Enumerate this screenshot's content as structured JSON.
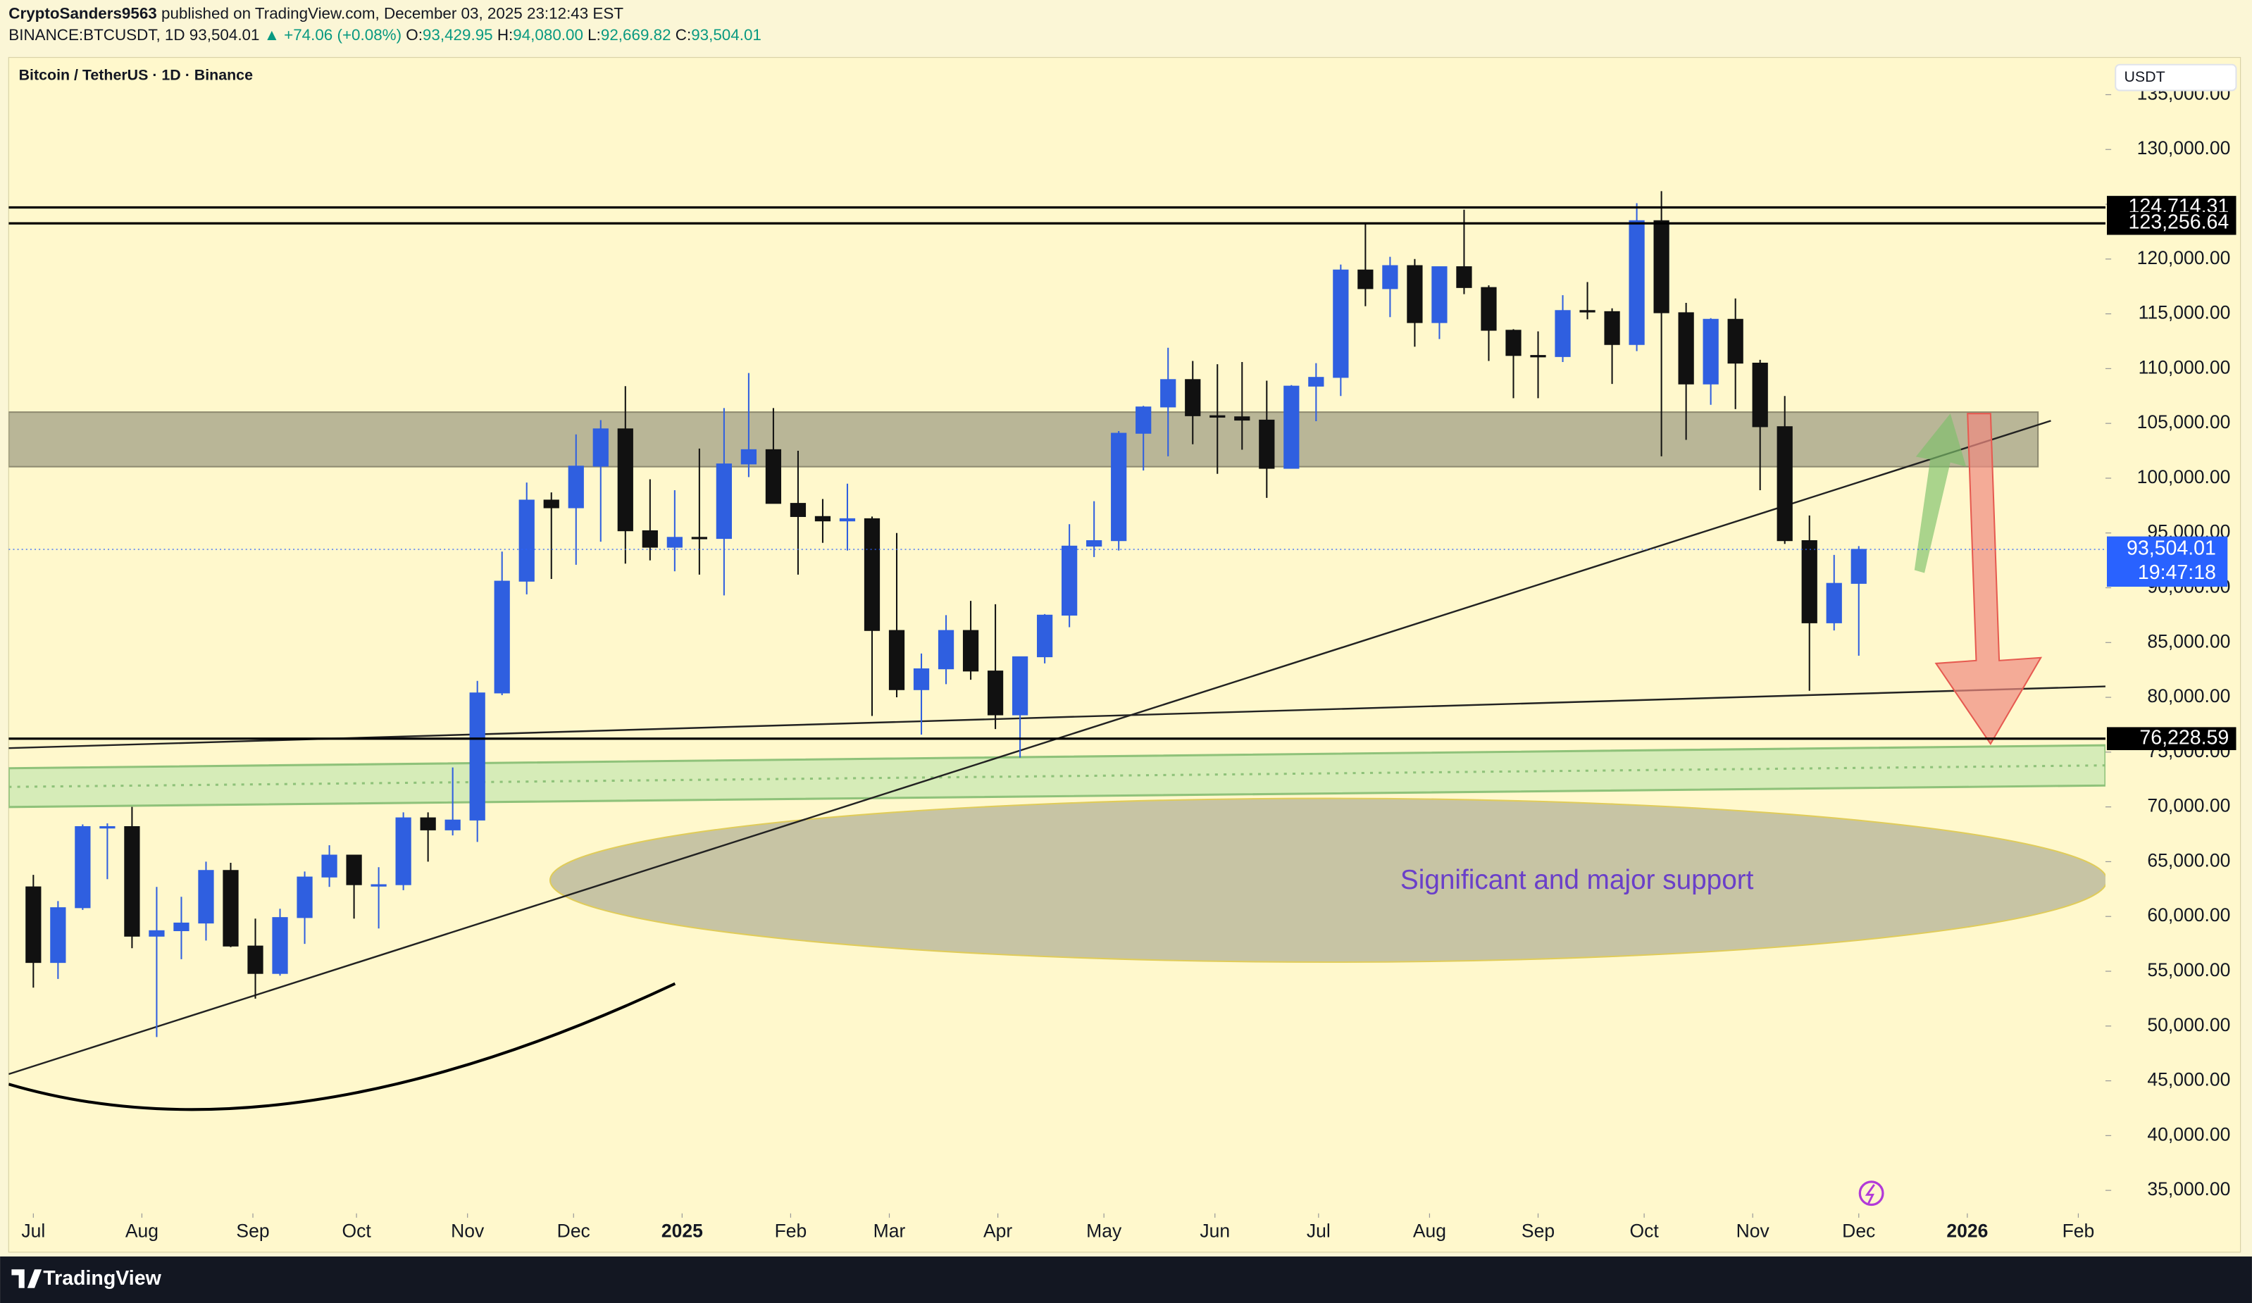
{
  "header": {
    "author": "CryptoSanders9563",
    "published": "published on TradingView.com, December 03, 2025 23:12:43 EST",
    "symbol": "BINANCE:BTCUSDT, 1D",
    "price": "93,504.01",
    "change": "▲ +74.06 (+0.08%)",
    "ohlc": [
      {
        "key": "O:",
        "value": "93,429.95"
      },
      {
        "key": "H:",
        "value": "94,080.00"
      },
      {
        "key": "L:",
        "value": "92,669.82"
      },
      {
        "key": "C:",
        "value": "93,504.01"
      }
    ]
  },
  "brand": "TradingView",
  "chart_data": {
    "type": "candlestick",
    "title": "Bitcoin / TetherUS · 1D · Binance",
    "y_unit": "USDT",
    "up_color": "#2f5fe0",
    "down_color": "#111111",
    "grid": false,
    "annotation": "Significant and major support",
    "open": [
      62700,
      55800,
      60800,
      68200,
      68200,
      58200,
      58700,
      59400,
      64200,
      57300,
      54800,
      59900,
      63600,
      65600,
      62900,
      62900,
      69000,
      67900,
      68800,
      80400,
      90600,
      98000,
      97300,
      101100,
      104500,
      95200,
      93700,
      94600,
      94500,
      101300,
      102600,
      97700,
      96500,
      96100,
      96300,
      86100,
      80700,
      82600,
      86100,
      82400,
      78400,
      83700,
      87500,
      93800,
      94300,
      104100,
      106500,
      109000,
      105700,
      105600,
      105300,
      100900,
      108400,
      109200,
      119000,
      117300,
      119400,
      114200,
      119300,
      117400,
      113500,
      111200,
      111100,
      115300,
      115200,
      112200,
      123500,
      115100,
      108600,
      114500,
      110500,
      104700,
      94300,
      86800,
      90400
    ],
    "high": [
      63800,
      61400,
      68400,
      68500,
      70000,
      62700,
      61800,
      65000,
      64900,
      59800,
      60700,
      64100,
      66500,
      65600,
      64500,
      69500,
      69500,
      73600,
      81500,
      93300,
      99600,
      98700,
      104000,
      105300,
      108400,
      99900,
      98900,
      102700,
      106400,
      109600,
      106400,
      102500,
      98100,
      99500,
      96500,
      95000,
      84000,
      87500,
      88800,
      88500,
      83600,
      87600,
      95800,
      97900,
      104300,
      106600,
      111900,
      110700,
      110400,
      110600,
      108900,
      108500,
      110500,
      119500,
      123200,
      120200,
      120000,
      119300,
      124500,
      117600,
      113600,
      113400,
      116700,
      117900,
      115500,
      125100,
      126200,
      116000,
      114600,
      116400,
      110800,
      107500,
      96600,
      93000,
      93800
    ],
    "low": [
      53500,
      54300,
      60600,
      63400,
      57100,
      49000,
      56100,
      57800,
      57200,
      52500,
      54600,
      57500,
      62700,
      59800,
      58900,
      62400,
      65000,
      67400,
      66800,
      80200,
      89400,
      90800,
      92100,
      94200,
      92200,
      92500,
      91500,
      91200,
      89300,
      100100,
      97800,
      91200,
      94100,
      93400,
      78300,
      80000,
      76600,
      81200,
      81600,
      77100,
      74500,
      83100,
      86400,
      92800,
      93400,
      100700,
      102000,
      103100,
      100400,
      102600,
      98200,
      100900,
      105200,
      107500,
      115700,
      114700,
      112000,
      112700,
      116800,
      110700,
      107300,
      107300,
      110600,
      114500,
      108600,
      111600,
      102000,
      103500,
      106700,
      106300,
      98900,
      94000,
      80600,
      86100,
      83800
    ],
    "close": [
      55800,
      60800,
      68200,
      68200,
      58200,
      58700,
      59400,
      64200,
      57300,
      54800,
      59900,
      63600,
      65600,
      62900,
      62900,
      69000,
      67900,
      68800,
      80400,
      90600,
      98000,
      97300,
      101100,
      104500,
      95200,
      93700,
      94600,
      94500,
      101300,
      102600,
      97700,
      96500,
      96100,
      96300,
      86100,
      80700,
      82600,
      86100,
      82400,
      78400,
      83700,
      87500,
      93800,
      94300,
      104100,
      106500,
      109000,
      105700,
      105600,
      105300,
      100900,
      108400,
      109200,
      119000,
      117300,
      119400,
      114200,
      119300,
      117400,
      113500,
      111200,
      111100,
      115300,
      115200,
      112200,
      123500,
      115100,
      108600,
      114500,
      110500,
      104700,
      94300,
      86800,
      90400,
      93504.01
    ],
    "ylim": [
      32900,
      138400
    ],
    "yticks": [
      {
        "value": 35000,
        "label": "35,000.00"
      },
      {
        "value": 40000,
        "label": "40,000.00"
      },
      {
        "value": 45000,
        "label": "45,000.00"
      },
      {
        "value": 50000,
        "label": "50,000.00"
      },
      {
        "value": 55000,
        "label": "55,000.00"
      },
      {
        "value": 60000,
        "label": "60,000.00"
      },
      {
        "value": 65000,
        "label": "65,000.00"
      },
      {
        "value": 70000,
        "label": "70,000.00"
      },
      {
        "value": 75000,
        "label": "75,000.00"
      },
      {
        "value": 80000,
        "label": "80,000.00"
      },
      {
        "value": 85000,
        "label": "85,000.00"
      },
      {
        "value": 90000,
        "label": "90,000.00"
      },
      {
        "value": 95000,
        "label": "95,000.00"
      },
      {
        "value": 100000,
        "label": "100,000.00"
      },
      {
        "value": 105000,
        "label": "105,000.00"
      },
      {
        "value": 110000,
        "label": "110,000.00"
      },
      {
        "value": 115000,
        "label": "115,000.00"
      },
      {
        "value": 120000,
        "label": "120,000.00"
      },
      {
        "value": 125000,
        "label": "125,000.00"
      },
      {
        "value": 130000,
        "label": "130,000.00"
      },
      {
        "value": 135000,
        "label": "135,000.00"
      }
    ],
    "xlim": [
      -1,
      84
    ],
    "xticks": [
      {
        "value": 0,
        "label": "Jul"
      },
      {
        "value": 4.4,
        "label": "Aug"
      },
      {
        "value": 8.9,
        "label": "Sep"
      },
      {
        "value": 13.1,
        "label": "Oct"
      },
      {
        "value": 17.6,
        "label": "Nov"
      },
      {
        "value": 21.9,
        "label": "Dec"
      },
      {
        "value": 26.3,
        "label": "2025"
      },
      {
        "value": 30.7,
        "label": "Feb"
      },
      {
        "value": 34.7,
        "label": "Mar"
      },
      {
        "value": 39.1,
        "label": "Apr"
      },
      {
        "value": 43.4,
        "label": "May"
      },
      {
        "value": 47.9,
        "label": "Jun"
      },
      {
        "value": 52.1,
        "label": "Jul"
      },
      {
        "value": 56.6,
        "label": "Aug"
      },
      {
        "value": 61,
        "label": "Sep"
      },
      {
        "value": 65.3,
        "label": "Oct"
      },
      {
        "value": 69.7,
        "label": "Nov"
      },
      {
        "value": 74,
        "label": "Dec"
      },
      {
        "value": 78.4,
        "label": "2026"
      },
      {
        "value": 82.9,
        "label": "Feb"
      }
    ],
    "levels": [
      {
        "value": 124714.31,
        "label": "124,714.31"
      },
      {
        "value": 123256.64,
        "label": "123,256.64"
      },
      {
        "value": 76228.59,
        "label": "76,228.59"
      }
    ],
    "last": {
      "value": 93504.01,
      "label": "93,504.01",
      "countdown": "19:47:18"
    }
  }
}
